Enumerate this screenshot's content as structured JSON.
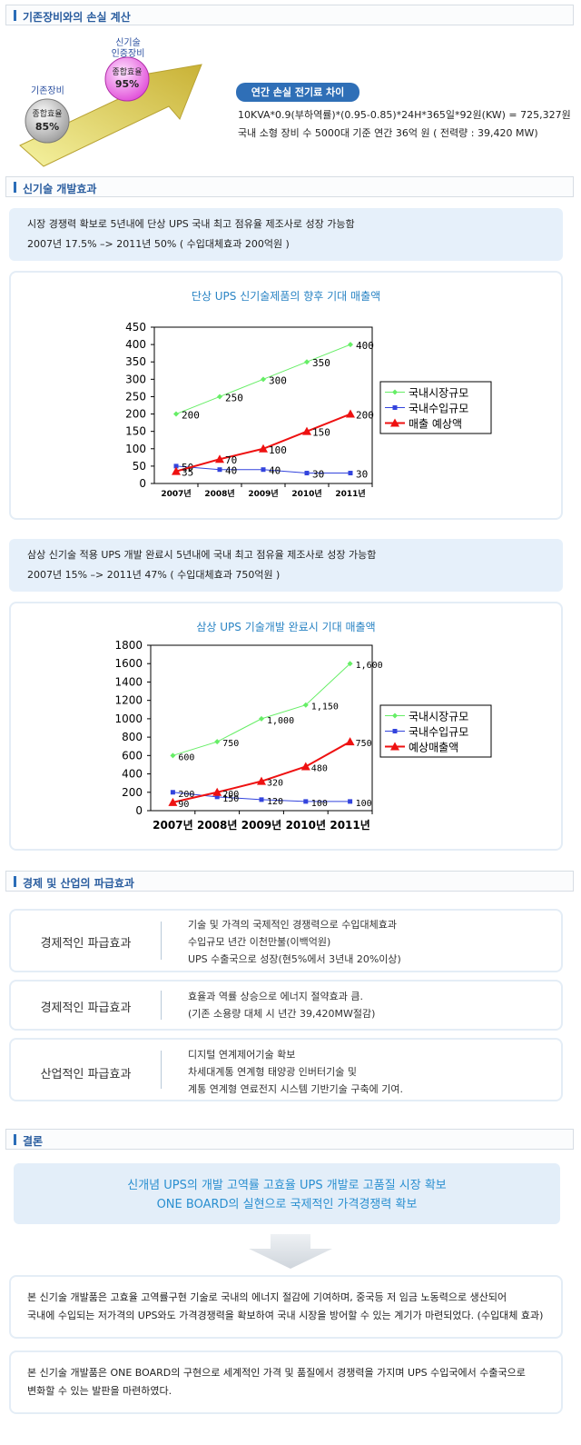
{
  "sections": {
    "loss": "기존장비와의 손실 계산",
    "newtech": "신기술 개발효과",
    "economy": "경제 및 산업의 파급효과",
    "conclusion": "결론"
  },
  "comparison": {
    "old_label": "기존장비",
    "old_value_label": "종합효율",
    "old_value": "85%",
    "new_label_1": "신기술",
    "new_label_2": "인증장비",
    "new_value_label": "종합효율",
    "new_value": "95%"
  },
  "annual_loss": {
    "badge": "연간 손실 전기료 차이",
    "line1": "10KVA*0.9(부하역률)*(0.95-0.85)*24H*365일*92원(KW) = 725,327원",
    "line2": "국내 소형 장비 수 5000대 기준  연간 36억 원 ( 전력량 : 39,420 MW)"
  },
  "intro1": {
    "line1": "시장 경쟁력 확보로 5년내에 단상 UPS 국내 최고 점유율 제조사로 성장 가능함",
    "line2": "2007년 17.5% –> 2011년 50% ( 수입대체효과 200억원 )"
  },
  "intro2": {
    "line1": "삼상 신기술 적용 UPS 개발 완료시 5년내에 국내 최고 점유율 제조사로 성장 가능함",
    "line2": "2007년 15% –> 2011년 47% ( 수입대체효과 750억원 )"
  },
  "chart_data": [
    {
      "type": "line",
      "title": "단상 UPS 신기술제품의 향후 기대 매출액",
      "categories": [
        "2007년",
        "2008년",
        "2009년",
        "2010년",
        "2011년"
      ],
      "ylim": [
        0,
        450
      ],
      "yticks": [
        0,
        50,
        100,
        150,
        200,
        250,
        300,
        350,
        400,
        450
      ],
      "grid": false,
      "legend": "right",
      "series": [
        {
          "name": "국내시장규모",
          "values": [
            200,
            250,
            300,
            350,
            400
          ],
          "color": "#66ee66",
          "marker": "diamond"
        },
        {
          "name": "국내수입규모",
          "values": [
            50,
            40,
            40,
            30,
            30
          ],
          "color": "#3344dd",
          "marker": "square"
        },
        {
          "name": "매출 예상액",
          "values": [
            35,
            70,
            100,
            150,
            200
          ],
          "color": "#ee1111",
          "marker": "triangle"
        }
      ]
    },
    {
      "type": "line",
      "title": "삼상 UPS 기술개발 완료시 기대 매출액",
      "categories": [
        "2007년",
        "2008년",
        "2009년",
        "2010년",
        "2011년"
      ],
      "ylim": [
        0,
        1800
      ],
      "yticks": [
        0,
        200,
        400,
        600,
        800,
        1000,
        1200,
        1400,
        1600,
        1800
      ],
      "grid": false,
      "legend": "right",
      "series": [
        {
          "name": "국내시장규모",
          "values": [
            600,
            750,
            1000,
            1150,
            1600
          ],
          "labels": [
            "600",
            "750",
            "1,000",
            "1,150",
            "1,600"
          ],
          "color": "#66ee66",
          "marker": "diamond"
        },
        {
          "name": "국내수입규모",
          "values": [
            200,
            150,
            120,
            100,
            100
          ],
          "color": "#3344dd",
          "marker": "square"
        },
        {
          "name": "예상매출액",
          "values": [
            90,
            200,
            320,
            480,
            750
          ],
          "color": "#ee1111",
          "marker": "triangle"
        }
      ]
    }
  ],
  "effects": [
    {
      "label": "경제적인 파급효과",
      "lines": [
        "기술 및 가격의 국제적인 경쟁력으로 수입대체효과",
        "수입규모 년간 이천만불(이백억원)",
        "UPS 수출국으로 성장(현5%에서 3년내 20%이상)"
      ]
    },
    {
      "label": "경제적인 파급효과",
      "lines": [
        "효율과 역률 상승으로 에너지 절약효과 큼.",
        "(기존 소용량 대체 시 년간 39,420MW절감)"
      ]
    },
    {
      "label": "산업적인 파급효과",
      "lines": [
        "디지털 연계제어기술 확보",
        "차세대계통 연계형 태양광 인버터기술 및",
        "계통 연계형 연료전지 시스템 기반기술 구축에 기여."
      ]
    }
  ],
  "conclusion": {
    "headline1": "신개념 UPS의 개발 고역률 고효율 UPS 개발로 고품질 시장 확보",
    "headline2": "ONE BOARD의 실현으로 국제적인 가격경쟁력 확보",
    "para1_line1": "본 신기술 개발품은 고효율 고역률구현 기술로 국내의 에너지 절감에 기여하며, 중국등 저 임금 노동력으로 생산되어",
    "para1_line2": "국내에 수입되는 저가격의 UPS와도 가격경쟁력을 확보하여 국내 시장을 방어할 수 있는 계기가 마련되었다. (수입대체 효과)",
    "para2_line1": "본 신기술 개발품은 ONE BOARD의 구현으로 세계적인 가격 및 품질에서 경쟁력을 가지며 UPS 수입국에서 수출국으로",
    "para2_line2": "변화할 수 있는 발판을 마련하였다."
  }
}
